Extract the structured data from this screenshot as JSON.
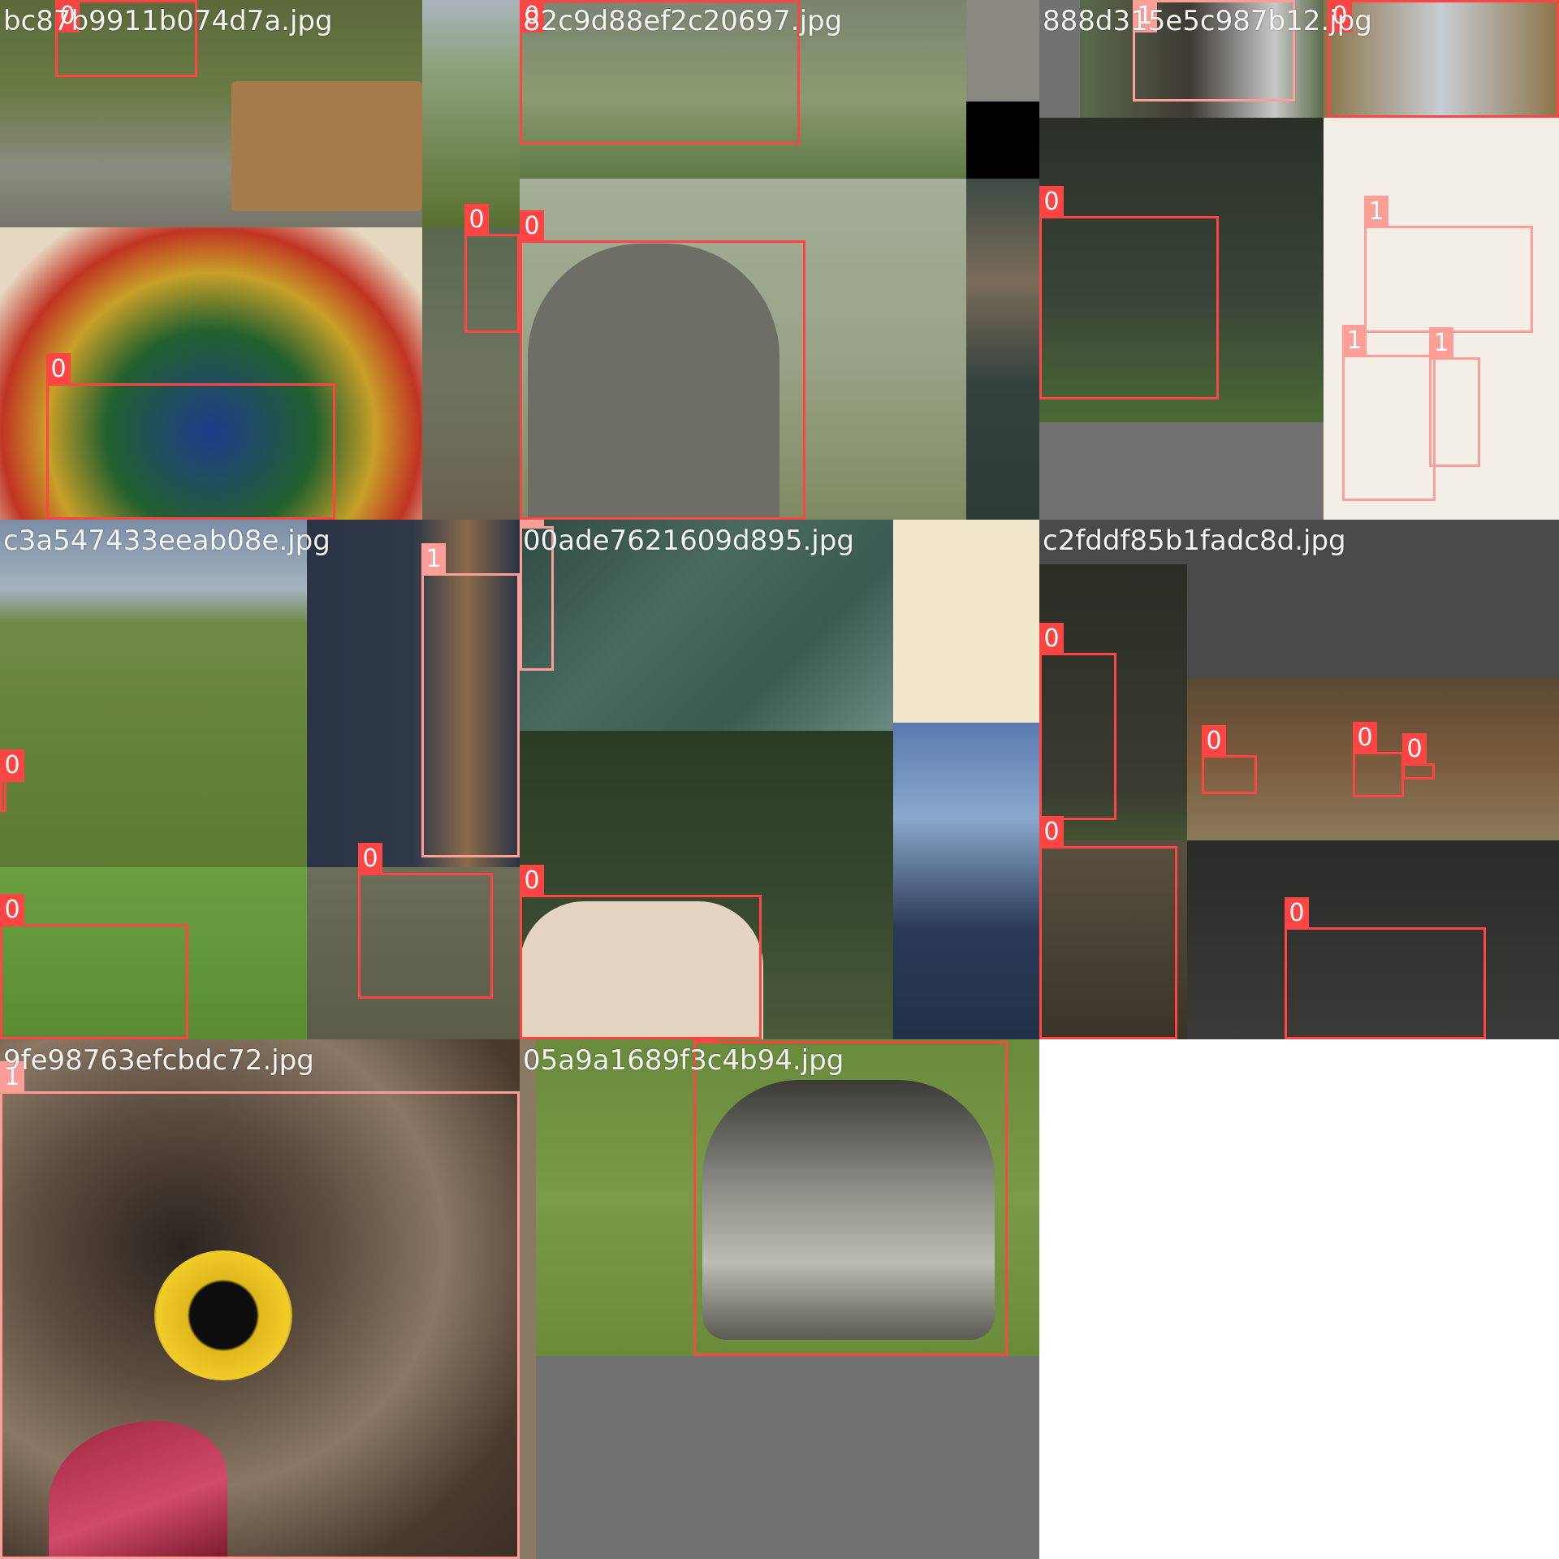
{
  "colors": {
    "class_0": "#ff4444",
    "class_1": "#ff9d97",
    "filename_text": "#f4f4f4",
    "padding_gray": "#727272",
    "background": "#ffffff"
  },
  "tiles": [
    {
      "filename": "bc87b9911b074d7a.jpg",
      "boxes": [
        {
          "cls": "0"
        },
        {
          "cls": "0"
        },
        {
          "cls": "0"
        }
      ]
    },
    {
      "filename": "82c9d88ef2c20697.jpg",
      "boxes": [
        {
          "cls": "0"
        },
        {
          "cls": "0"
        }
      ]
    },
    {
      "filename": "888d315e5c987b12.jpg",
      "boxes": [
        {
          "cls": "1"
        },
        {
          "cls": "0"
        },
        {
          "cls": "0"
        },
        {
          "cls": "1"
        },
        {
          "cls": "1"
        },
        {
          "cls": "1"
        }
      ]
    },
    {
      "filename": "c3a547433eeab08e.jpg",
      "boxes": [
        {
          "cls": "1"
        },
        {
          "cls": "1"
        },
        {
          "cls": "0"
        },
        {
          "cls": "0"
        },
        {
          "cls": "0"
        }
      ]
    },
    {
      "filename": "00ade7621609d895.jpg",
      "boxes": [
        {
          "cls": "0"
        },
        {
          "cls": "0"
        }
      ]
    },
    {
      "filename": "c2fddf85b1fadc8d.jpg",
      "boxes": [
        {
          "cls": "0"
        },
        {
          "cls": "0"
        },
        {
          "cls": "0"
        },
        {
          "cls": "0"
        },
        {
          "cls": "0"
        },
        {
          "cls": "0"
        }
      ]
    },
    {
      "filename": "9fe98763efcbdc72.jpg",
      "boxes": [
        {
          "cls": "1"
        }
      ]
    },
    {
      "filename": "05a9a1689f3c4b94.jpg",
      "boxes": [
        {
          "cls": "0"
        }
      ]
    }
  ]
}
